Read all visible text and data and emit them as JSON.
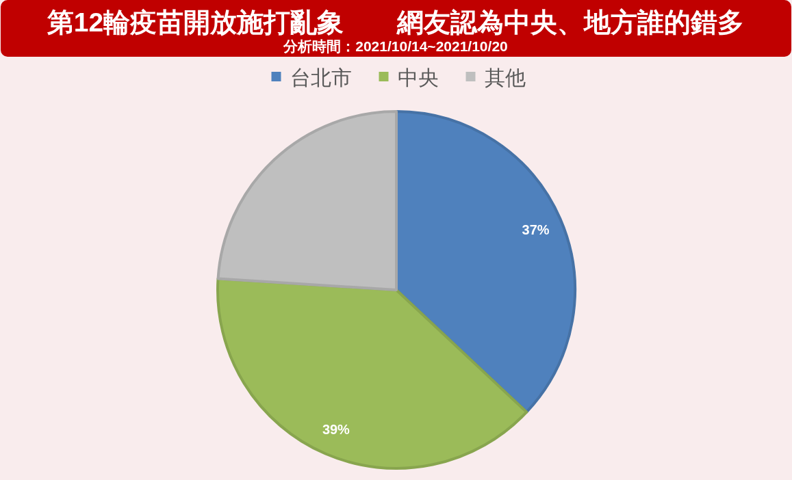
{
  "chart_data": {
    "type": "pie",
    "title": "第12輪疫苗開放施打亂象　　網友認為中央、地方誰的錯多",
    "subtitle": "分析時間：2021/10/14~2021/10/20",
    "categories": [
      "台北市",
      "中央",
      "其他"
    ],
    "values": [
      37,
      39,
      24
    ],
    "colors": [
      "#4f81bd",
      "#9bbb59",
      "#bfbfbf"
    ],
    "value_labels": [
      "37%",
      "39%",
      null
    ],
    "legend": "top"
  }
}
